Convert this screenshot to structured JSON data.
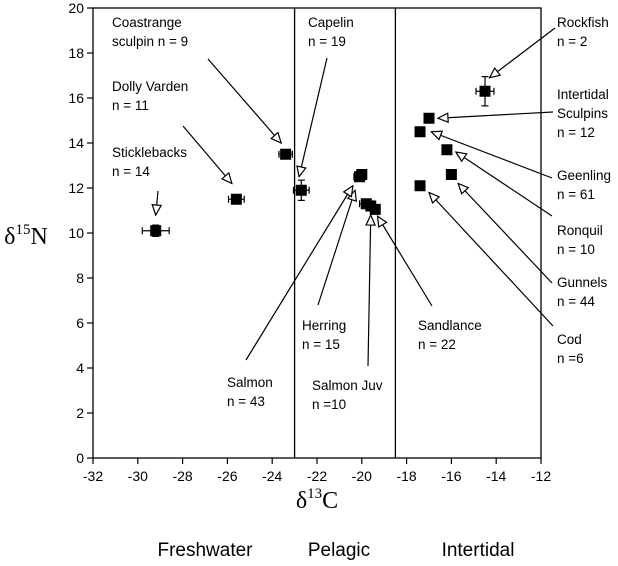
{
  "chart_data": {
    "type": "scatter",
    "title": "",
    "xlabel": {
      "prefix": "δ",
      "sup": "13",
      "main": "C"
    },
    "ylabel": {
      "prefix": "δ",
      "sup": "15",
      "main": "N"
    },
    "xlim": [
      -32,
      -12
    ],
    "ylim": [
      0,
      20
    ],
    "x_ticks": [
      -32,
      -30,
      -28,
      -26,
      -24,
      -22,
      -20,
      -18,
      -16,
      -14,
      -12
    ],
    "y_ticks": [
      0,
      2,
      4,
      6,
      8,
      10,
      12,
      14,
      16,
      18,
      20
    ],
    "x_tick_labels": [
      "-32",
      "-30",
      "-28",
      "-26",
      "-24",
      "-22",
      "-20",
      "-18",
      "-16",
      "-14",
      "-12"
    ],
    "y_tick_labels": [
      "0",
      "2",
      "4",
      "6",
      "8",
      "10",
      "12",
      "14",
      "16",
      "18",
      "20"
    ],
    "grid": false,
    "zone_boundaries": [
      -23.0,
      -18.5
    ],
    "zones": [
      "Freshwater",
      "Pelagic",
      "Intertidal"
    ],
    "points": [
      {
        "x": -29.2,
        "y": 10.1,
        "xerr": 0.6,
        "yerr": 0.25
      },
      {
        "x": -25.6,
        "y": 11.5,
        "xerr": 0.35,
        "yerr": 0.2
      },
      {
        "x": -23.4,
        "y": 13.5,
        "xerr": 0.3,
        "yerr": 0.2
      },
      {
        "x": -22.7,
        "y": 11.9,
        "xerr": 0.35,
        "yerr": 0.45
      },
      {
        "x": -20.1,
        "y": 12.5,
        "xerr": 0.25,
        "yerr": 0.2
      },
      {
        "x": -20.0,
        "y": 12.6,
        "xerr": 0.2,
        "yerr": 0.15
      },
      {
        "x": -19.8,
        "y": 11.3,
        "xerr": 0.3,
        "yerr": 0.2
      },
      {
        "x": -19.6,
        "y": 11.2,
        "xerr": 0.2,
        "yerr": 0.15
      },
      {
        "x": -19.4,
        "y": 11.05,
        "xerr": 0.2,
        "yerr": 0.15
      },
      {
        "x": -17.0,
        "y": 15.1,
        "xerr": 0,
        "yerr": 0
      },
      {
        "x": -17.4,
        "y": 14.5,
        "xerr": 0,
        "yerr": 0
      },
      {
        "x": -16.2,
        "y": 13.7,
        "xerr": 0,
        "yerr": 0
      },
      {
        "x": -16.0,
        "y": 12.6,
        "xerr": 0,
        "yerr": 0
      },
      {
        "x": -17.4,
        "y": 12.1,
        "xerr": 0,
        "yerr": 0
      },
      {
        "x": -14.5,
        "y": 16.3,
        "xerr": 0.4,
        "yerr": 0.65
      }
    ],
    "annotations": [
      {
        "lines": [
          "Sticklebacks",
          "n = 14"
        ],
        "tip": [
          -29.2,
          10.8
        ]
      },
      {
        "lines": [
          "Dolly Varden",
          "n = 11"
        ],
        "tip": [
          -25.8,
          12.2
        ]
      },
      {
        "lines": [
          "Coastrange",
          "sculpin n = 9"
        ],
        "tip": [
          -23.6,
          14.0
        ]
      },
      {
        "lines": [
          "Capelin",
          "n = 19"
        ],
        "tip": [
          -22.8,
          12.5
        ]
      },
      {
        "lines": [
          "Herring",
          "n = 15"
        ],
        "tip": [
          -20.3,
          11.9
        ]
      },
      {
        "lines": [
          "Salmon",
          "n = 43"
        ],
        "tip": [
          -20.4,
          12.1
        ]
      },
      {
        "lines": [
          "Salmon Juv",
          "n =10"
        ],
        "tip": [
          -19.6,
          10.8
        ]
      },
      {
        "lines": [
          "Sandlance",
          "n = 22"
        ],
        "tip": [
          -19.3,
          10.75
        ]
      },
      {
        "lines": [
          "Rockfish",
          "n = 2"
        ],
        "tip": [
          -14.3,
          16.9
        ]
      },
      {
        "lines": [
          "Intertidal",
          "Sculpins",
          "n = 12"
        ],
        "tip": [
          -16.6,
          15.1
        ]
      },
      {
        "lines": [
          "Geenling",
          "n = 61"
        ],
        "tip": [
          -16.9,
          14.5
        ]
      },
      {
        "lines": [
          "Ronquil",
          "n = 10"
        ],
        "tip": [
          -15.8,
          13.6
        ]
      },
      {
        "lines": [
          "Gunnels",
          "n = 44"
        ],
        "tip": [
          -15.7,
          12.2
        ]
      },
      {
        "lines": [
          "Cod",
          "n =6"
        ],
        "tip": [
          -17.0,
          11.8
        ]
      }
    ]
  }
}
